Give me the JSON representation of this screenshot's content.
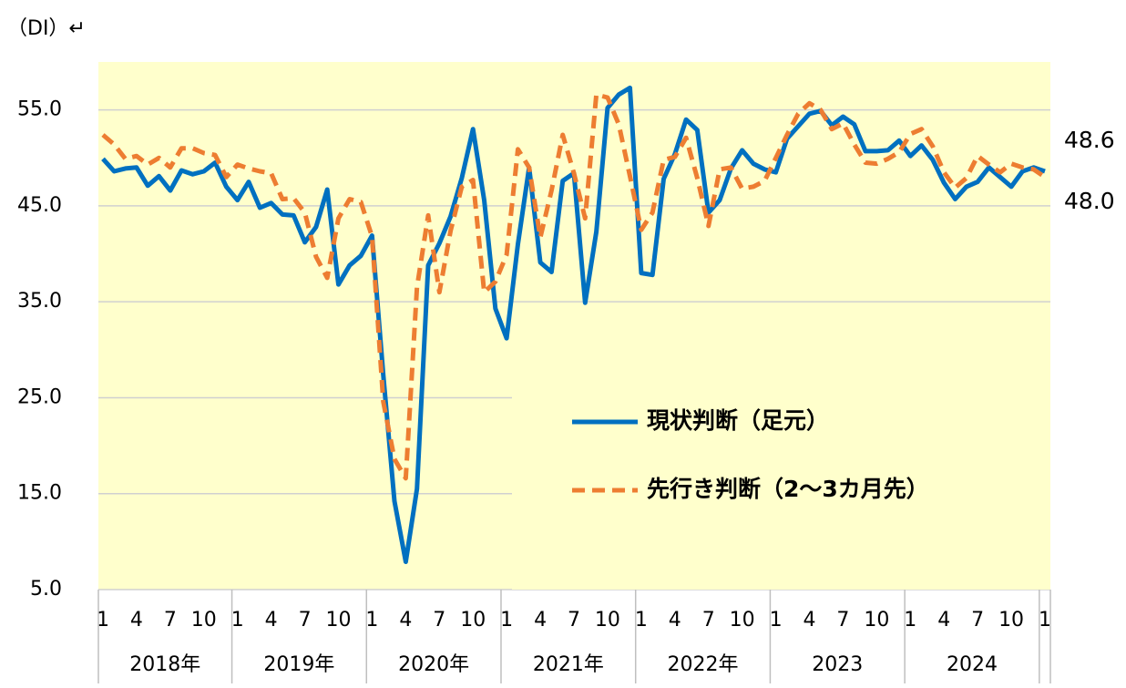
{
  "chart_data": {
    "type": "line",
    "title": "（DI）↵",
    "categories": [
      "1",
      null,
      null,
      "4",
      null,
      null,
      "7",
      null,
      null,
      "10",
      null,
      null,
      "1",
      null,
      null,
      "4",
      null,
      null,
      "7",
      null,
      null,
      "10",
      null,
      null,
      "1",
      null,
      null,
      "4",
      null,
      null,
      "7",
      null,
      null,
      "10",
      null,
      null,
      "1",
      null,
      null,
      "4",
      null,
      null,
      "7",
      null,
      null,
      "10",
      null,
      null,
      "1",
      null,
      null,
      "4",
      null,
      null,
      "7",
      null,
      null,
      "10",
      null,
      null,
      "1",
      null,
      null,
      "4",
      null,
      null,
      "7",
      null,
      null,
      "10",
      null,
      null,
      "1",
      null,
      null,
      "4",
      null,
      null,
      "7",
      null,
      null,
      "10",
      null,
      null,
      "1"
    ],
    "years": [
      "2018年",
      "2019年",
      "2020年",
      "2021年",
      "2022年",
      "2023",
      "2024"
    ],
    "series": [
      {
        "name": "現状判断（足元）",
        "color": "#0070c0",
        "dashed": false,
        "values": [
          49.9,
          48.6,
          48.9,
          49.0,
          47.1,
          48.1,
          46.6,
          48.7,
          48.3,
          48.6,
          49.5,
          47.0,
          45.6,
          47.5,
          44.8,
          45.3,
          44.1,
          44.0,
          41.2,
          42.8,
          46.7,
          36.8,
          38.8,
          39.8,
          41.9,
          27.4,
          14.2,
          7.9,
          15.5,
          38.8,
          41.1,
          43.9,
          47.9,
          53.0,
          45.6,
          34.3,
          31.2,
          41.0,
          49.0,
          39.1,
          38.1,
          47.6,
          48.4,
          34.9,
          42.3,
          55.2,
          56.6,
          57.3,
          38.0,
          37.8,
          47.8,
          50.4,
          54.0,
          52.9,
          44.3,
          45.6,
          48.9,
          50.8,
          49.4,
          48.8,
          48.5,
          52.0,
          53.3,
          54.6,
          54.9,
          53.4,
          54.3,
          53.5,
          50.7,
          50.7,
          50.8,
          51.8,
          50.2,
          51.3,
          49.8,
          47.4,
          45.7,
          47.0,
          47.5,
          49.0,
          48.0,
          47.0,
          48.6,
          49.0,
          48.6
        ]
      },
      {
        "name": "先行き判断（2～3カ月先）",
        "color": "#ed7d31",
        "dashed": true,
        "values": [
          52.4,
          51.4,
          49.9,
          50.2,
          49.3,
          50.0,
          49.0,
          51.0,
          51.0,
          50.5,
          50.3,
          48.0,
          49.3,
          48.9,
          48.6,
          48.4,
          45.7,
          45.8,
          44.3,
          39.7,
          37.5,
          43.7,
          45.7,
          45.4,
          41.8,
          24.6,
          18.6,
          16.6,
          36.5,
          44.0,
          36.0,
          42.4,
          47.0,
          47.7,
          36.0,
          37.1,
          39.9,
          50.9,
          49.0,
          41.7,
          46.6,
          52.4,
          48.4,
          43.7,
          56.6,
          56.3,
          53.5,
          48.1,
          42.5,
          44.3,
          49.8,
          50.1,
          52.1,
          47.9,
          42.9,
          48.8,
          49.0,
          46.8,
          47.0,
          47.6,
          50.0,
          52.4,
          54.6,
          55.7,
          55.0,
          53.0,
          53.6,
          51.4,
          49.5,
          49.4,
          49.9,
          50.6,
          52.5,
          53.0,
          51.2,
          48.5,
          46.9,
          47.9,
          50.2,
          49.3,
          48.5,
          49.4,
          49.0,
          48.8,
          48.0
        ]
      }
    ],
    "annotations": [
      "48.6",
      "48.0"
    ],
    "ylim": [
      5,
      60
    ],
    "yticks": [
      {
        "value": 5,
        "label": "5.0"
      },
      {
        "value": 15,
        "label": "15.0"
      },
      {
        "value": 25,
        "label": "25.0"
      },
      {
        "value": 35,
        "label": "35.0"
      },
      {
        "value": 45,
        "label": "45.0"
      },
      {
        "value": 55,
        "label": "55.0"
      }
    ],
    "grid": true,
    "legend": "lower right"
  }
}
